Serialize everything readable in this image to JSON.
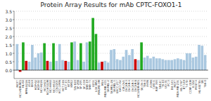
{
  "chart_data": {
    "type": "bar",
    "title": "Protein Array Results for mAb CPTC-FOXO1-1",
    "categories": [
      "MCF7",
      "NCI-ADR-RES",
      "HL-60",
      "RPMI-8226",
      "A549",
      "EKVX",
      "HOP-62",
      "HOP-92",
      "NCI-H226",
      "NCI-H23",
      "NCI-H322M",
      "NCI-H460",
      "NCI-H522",
      "COLO205",
      "HCC-2998",
      "HCT-116",
      "HCT-15",
      "HT29",
      "KM12",
      "SW-620",
      "SF-268",
      "SF-295",
      "SF-539",
      "SNB-19",
      "SNB-75",
      "U251",
      "LOX IMVI",
      "MALME-3M",
      "M14",
      "MDA-MB-435",
      "SK-MEL-2",
      "SK-MEL-28",
      "SK-MEL-5",
      "UACC-257",
      "UACC-62",
      "IGR-OV1",
      "OVCAR-3",
      "OVCAR-4",
      "OVCAR-5",
      "OVCAR-8",
      "NCI/ADR-RES",
      "SK-OV-3",
      "786-0",
      "A498",
      "ACHN",
      "CAKI-1",
      "RXF 393",
      "SN12C",
      "TK-10",
      "UO-31",
      "PC-3",
      "DU-145",
      "MCF7",
      "MDA-MB-231",
      "HS 578T",
      "BT-549",
      "T-47D",
      "CCRF-CEM",
      "K-562",
      "MOLT-4",
      "HL-60(TB)",
      "SR",
      "786-0"
    ],
    "values": [
      1.55,
      -0.1,
      1.65,
      0.55,
      0.5,
      1.5,
      0.75,
      1.0,
      1.05,
      1.6,
      0.55,
      0.5,
      1.6,
      0.55,
      1.55,
      0.6,
      0.55,
      0.5,
      1.65,
      1.7,
      0.6,
      1.6,
      0.5,
      1.65,
      1.7,
      3.1,
      2.15,
      0.45,
      0.5,
      0.55,
      0.45,
      1.2,
      1.25,
      0.65,
      0.6,
      0.8,
      1.2,
      0.9,
      1.25,
      0.65,
      0.6,
      1.65,
      0.75,
      0.85,
      0.7,
      0.8,
      0.7,
      0.7,
      0.65,
      0.6,
      0.6,
      0.6,
      0.65,
      0.7,
      0.65,
      0.6,
      1.0,
      1.0,
      0.75,
      0.8,
      1.5,
      1.45,
      0.9
    ],
    "colors": [
      "#aac8e0",
      "#cc0000",
      "#22aa22",
      "#cc0000",
      "#aac8e0",
      "#aac8e0",
      "#aac8e0",
      "#aac8e0",
      "#aac8e0",
      "#22aa22",
      "#cc0000",
      "#aac8e0",
      "#22aa22",
      "#aac8e0",
      "#aac8e0",
      "#aac8e0",
      "#cc0000",
      "#aac8e0",
      "#22aa22",
      "#aac8e0",
      "#aac8e0",
      "#22aa22",
      "#aac8e0",
      "#aac8e0",
      "#22aa22",
      "#22aa22",
      "#22aa22",
      "#aac8e0",
      "#cc0000",
      "#aac8e0",
      "#aac8e0",
      "#aac8e0",
      "#aac8e0",
      "#aac8e0",
      "#aac8e0",
      "#aac8e0",
      "#aac8e0",
      "#aac8e0",
      "#aac8e0",
      "#cc0000",
      "#aac8e0",
      "#22aa22",
      "#aac8e0",
      "#aac8e0",
      "#aac8e0",
      "#aac8e0",
      "#aac8e0",
      "#aac8e0",
      "#aac8e0",
      "#aac8e0",
      "#aac8e0",
      "#aac8e0",
      "#aac8e0",
      "#aac8e0",
      "#aac8e0",
      "#aac8e0",
      "#aac8e0",
      "#aac8e0",
      "#aac8e0",
      "#aac8e0",
      "#aac8e0",
      "#aac8e0",
      "#aac8e0"
    ],
    "ylim": [
      -0.5,
      3.5
    ],
    "yticks": [
      {
        "value": 0.0,
        "label": "0.0"
      },
      0.5,
      {
        "value": 1.0,
        "label": "1.0"
      },
      1.5,
      {
        "value": 2.0,
        "label": "2.0"
      },
      2.5,
      {
        "value": 3.0,
        "label": "3.0"
      },
      3.5
    ],
    "grid": true
  }
}
